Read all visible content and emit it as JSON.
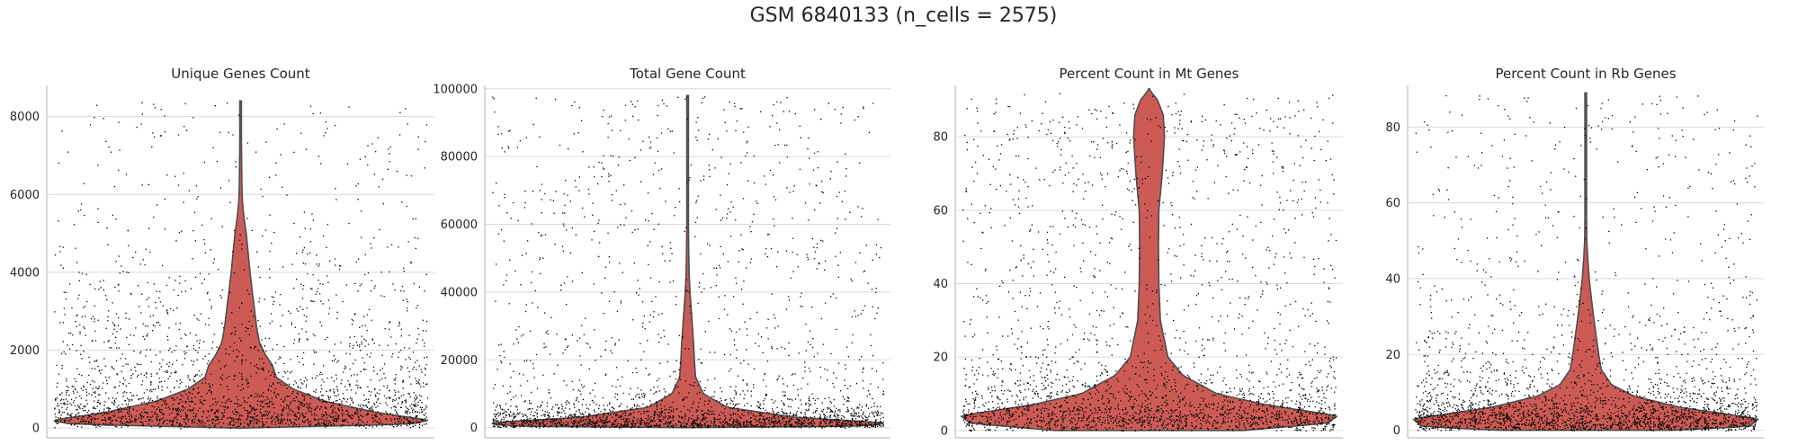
{
  "figure_title": "GSM 6840133 (n_cells = 2575)",
  "colors": {
    "violin": "#cd5b55",
    "violin_edge": "#4d4d4d",
    "points": "#000000",
    "grid": "#d9d9d9",
    "axis": "#bfbfbf"
  },
  "chart_data": [
    {
      "type": "violin",
      "title": "Unique Genes Count",
      "ylim": [
        -250,
        8800
      ],
      "yticks": [
        0,
        2000,
        4000,
        6000,
        8000
      ],
      "grid": true,
      "n_points": 2575,
      "distribution": {
        "max": 8400,
        "profile": [
          [
            0,
            0.0
          ],
          [
            100,
            0.9
          ],
          [
            200,
            1.0
          ],
          [
            400,
            0.72
          ],
          [
            700,
            0.44
          ],
          [
            1000,
            0.28
          ],
          [
            1300,
            0.19
          ],
          [
            1600,
            0.17
          ],
          [
            1900,
            0.13
          ],
          [
            2200,
            0.1
          ],
          [
            2600,
            0.085
          ],
          [
            3000,
            0.075
          ],
          [
            3500,
            0.062
          ],
          [
            4000,
            0.05
          ],
          [
            4500,
            0.04
          ],
          [
            5000,
            0.03
          ],
          [
            5400,
            0.018
          ],
          [
            5800,
            0.01
          ],
          [
            6200,
            0.007
          ],
          [
            7000,
            0.005
          ],
          [
            8400,
            0.003
          ]
        ]
      }
    },
    {
      "type": "violin",
      "title": "Total Gene Count",
      "ylim": [
        -3000,
        101000
      ],
      "yticks": [
        0,
        20000,
        40000,
        60000,
        80000,
        100000
      ],
      "grid": true,
      "n_points": 2575,
      "distribution": {
        "max": 98000,
        "profile": [
          [
            0,
            0.0
          ],
          [
            500,
            0.95
          ],
          [
            1500,
            1.0
          ],
          [
            3000,
            0.55
          ],
          [
            6000,
            0.2
          ],
          [
            10000,
            0.08
          ],
          [
            15000,
            0.04
          ],
          [
            20000,
            0.034
          ],
          [
            25000,
            0.03
          ],
          [
            30000,
            0.024
          ],
          [
            35000,
            0.018
          ],
          [
            40000,
            0.012
          ],
          [
            45000,
            0.008
          ],
          [
            50000,
            0.006
          ],
          [
            60000,
            0.004
          ],
          [
            70000,
            0.003
          ],
          [
            98000,
            0.002
          ]
        ]
      }
    },
    {
      "type": "violin",
      "title": "Percent Count in Mt Genes",
      "ylim": [
        -2,
        94
      ],
      "yticks": [
        0,
        20,
        40,
        60,
        80
      ],
      "grid": true,
      "n_points": 2575,
      "distribution": {
        "max": 93,
        "profile": [
          [
            0,
            0.5
          ],
          [
            2,
            0.95
          ],
          [
            4,
            1.0
          ],
          [
            7,
            0.62
          ],
          [
            10,
            0.36
          ],
          [
            15,
            0.18
          ],
          [
            20,
            0.1
          ],
          [
            30,
            0.06
          ],
          [
            40,
            0.052
          ],
          [
            50,
            0.05
          ],
          [
            60,
            0.052
          ],
          [
            70,
            0.07
          ],
          [
            80,
            0.082
          ],
          [
            86,
            0.075
          ],
          [
            90,
            0.045
          ],
          [
            93,
            0.0
          ]
        ]
      }
    },
    {
      "type": "violin",
      "title": "Percent Count in Rb Genes",
      "ylim": [
        -2,
        91
      ],
      "yticks": [
        0,
        20,
        40,
        60,
        80
      ],
      "grid": true,
      "n_points": 2575,
      "distribution": {
        "max": 89,
        "profile": [
          [
            0,
            0.5
          ],
          [
            1,
            0.95
          ],
          [
            3,
            1.0
          ],
          [
            6,
            0.55
          ],
          [
            9,
            0.28
          ],
          [
            12,
            0.15
          ],
          [
            16,
            0.09
          ],
          [
            20,
            0.075
          ],
          [
            25,
            0.06
          ],
          [
            30,
            0.045
          ],
          [
            35,
            0.032
          ],
          [
            40,
            0.02
          ],
          [
            45,
            0.012
          ],
          [
            50,
            0.006
          ],
          [
            60,
            0.004
          ],
          [
            89,
            0.002
          ]
        ]
      }
    }
  ]
}
